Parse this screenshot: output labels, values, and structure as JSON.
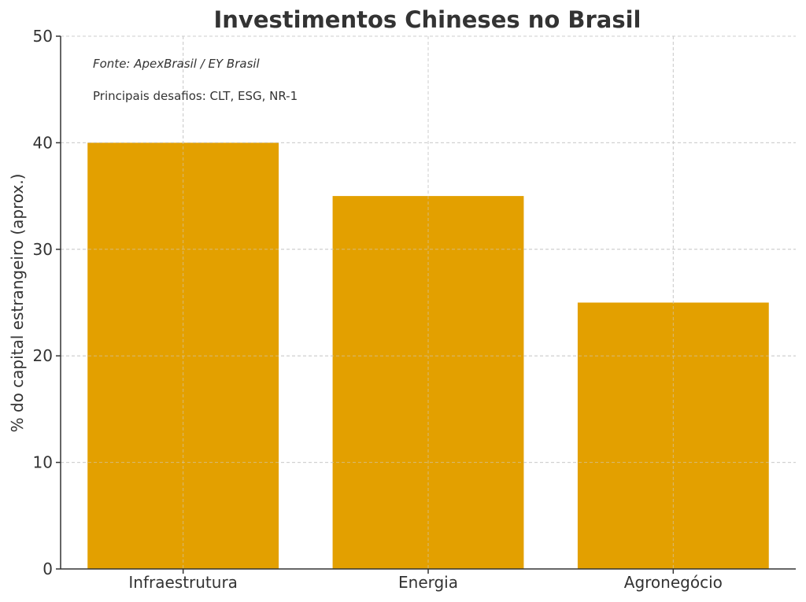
{
  "chart_data": {
    "type": "bar",
    "title": "Investimentos Chineses no Brasil",
    "xlabel": "",
    "ylabel": "% do capital estrangeiro (aprox.)",
    "categories": [
      "Infraestrutura",
      "Energia",
      "Agronegócio"
    ],
    "values": [
      40,
      35,
      25
    ],
    "ylim": [
      0,
      50
    ],
    "yticks": [
      "0",
      "10",
      "20",
      "30",
      "40",
      "50"
    ],
    "grid": true,
    "bar_color": "#E3A000",
    "annotations": [
      "Fonte: ApexBrasil / EY Brasil",
      "Principais desafios: CLT, ESG, NR-1"
    ]
  }
}
